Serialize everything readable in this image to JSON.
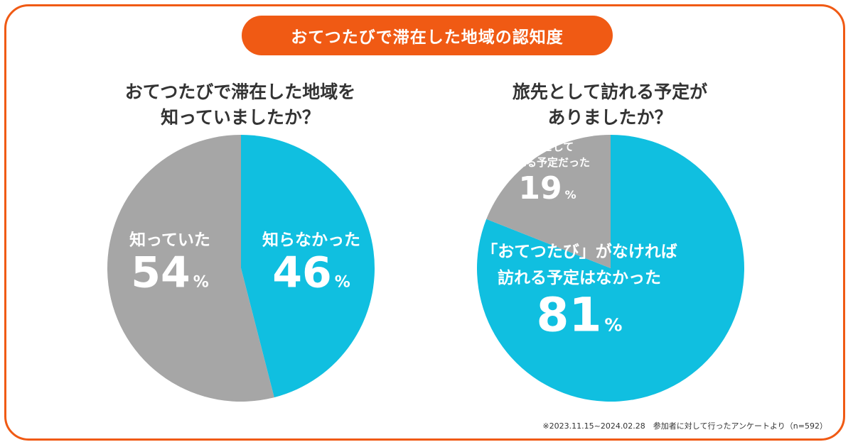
{
  "header": {
    "title": "おてつたびで滞在した地域の認知度"
  },
  "colors": {
    "accent": "#f05a14",
    "cyan": "#10bfe0",
    "gray": "#a6a6a6",
    "text": "#333333",
    "label": "#ffffff"
  },
  "left": {
    "question": [
      "おてつたびで滞在した地域を",
      "知っていましたか？"
    ]
  },
  "right": {
    "question": [
      "旅先として訪れる予定が",
      "ありましたか？"
    ]
  },
  "chart_data": [
    {
      "type": "pie",
      "title": "おてつたびで滞在した地域を知っていましたか？",
      "start": "12 o'clock",
      "direction": "clockwise",
      "slices": [
        {
          "label": [
            "知らなかった"
          ],
          "value": 46,
          "value_text": "46",
          "unit": "%",
          "color": "#10bfe0"
        },
        {
          "label": [
            "知っていた"
          ],
          "value": 54,
          "value_text": "54",
          "unit": "%",
          "color": "#a6a6a6"
        }
      ]
    },
    {
      "type": "pie",
      "title": "旅先として訪れる予定がありましたか？",
      "start": "12 o'clock",
      "direction": "clockwise",
      "slices": [
        {
          "label": [
            "「おてつたび」がなければ",
            "訪れる予定はなかった"
          ],
          "value": 81,
          "value_text": "81",
          "unit": "%",
          "color": "#10bfe0"
        },
        {
          "label": [
            "旅先として",
            "訪れる予定だった"
          ],
          "value": 19,
          "value_text": "19",
          "unit": "%",
          "color": "#a6a6a6"
        }
      ]
    }
  ],
  "footnote": "※2023.11.15~2024.02.28　参加者に対して行ったアンケートより（n=592）"
}
